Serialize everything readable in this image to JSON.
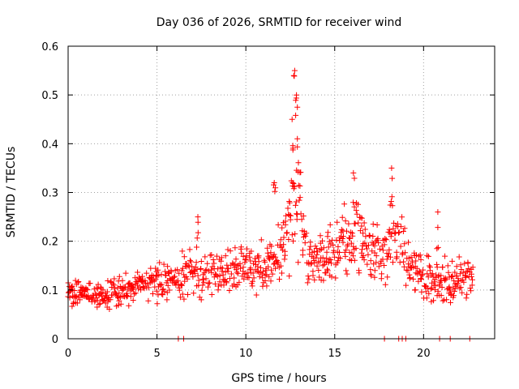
{
  "chart_data": {
    "type": "scatter",
    "title": "Day 036 of 2026, SRMTID for receiver wind",
    "xlabel": "GPS time / hours",
    "ylabel": "SRMTID / TECUs",
    "xlim": [
      0,
      24
    ],
    "ylim": [
      0,
      0.6
    ],
    "x_ticks": [
      0,
      5,
      10,
      15,
      20
    ],
    "y_ticks": [
      0,
      0.1,
      0.2,
      0.3,
      0.4,
      0.5,
      0.6
    ],
    "x_tick_labels": [
      "0",
      "5",
      "10",
      "15",
      "20"
    ],
    "y_tick_labels": [
      "0",
      "0.1",
      "0.2",
      "0.3",
      "0.4",
      "0.5",
      "0.6"
    ],
    "grid": true,
    "legend": "none",
    "marker": "plus",
    "color": "#ff0000",
    "sampling": "approximately every 2 minutes from 0 to 22.8 hours (~690 points)",
    "series_envelope": {
      "hours": [
        0,
        1,
        2,
        3,
        4,
        5,
        6,
        7,
        8,
        9,
        10,
        11,
        11.8,
        12.2,
        12.5,
        12.8,
        13,
        13.3,
        14,
        15,
        15.7,
        16.3,
        17,
        18,
        18.3,
        19,
        20,
        20.8,
        21.5,
        22,
        22.8
      ],
      "typical": [
        0.1,
        0.09,
        0.085,
        0.1,
        0.11,
        0.12,
        0.12,
        0.14,
        0.13,
        0.14,
        0.15,
        0.14,
        0.17,
        0.18,
        0.22,
        0.3,
        0.27,
        0.19,
        0.16,
        0.17,
        0.2,
        0.21,
        0.17,
        0.18,
        0.22,
        0.16,
        0.13,
        0.12,
        0.11,
        0.12,
        0.12
      ],
      "spread": [
        0.03,
        0.025,
        0.025,
        0.03,
        0.035,
        0.04,
        0.04,
        0.045,
        0.045,
        0.045,
        0.04,
        0.05,
        0.06,
        0.09,
        0.12,
        0.14,
        0.13,
        0.07,
        0.05,
        0.06,
        0.08,
        0.08,
        0.06,
        0.07,
        0.08,
        0.05,
        0.05,
        0.05,
        0.045,
        0.045,
        0.045
      ]
    },
    "peaks": [
      {
        "x": 12.75,
        "y": 0.55
      },
      {
        "x": 12.85,
        "y": 0.5
      },
      {
        "x": 12.6,
        "y": 0.45
      },
      {
        "x": 12.9,
        "y": 0.41
      },
      {
        "x": 16.05,
        "y": 0.34
      },
      {
        "x": 18.2,
        "y": 0.35
      },
      {
        "x": 11.6,
        "y": 0.32
      },
      {
        "x": 20.8,
        "y": 0.26
      },
      {
        "x": 7.3,
        "y": 0.25
      }
    ],
    "zero_points_x": [
      6.2,
      6.5,
      17.8,
      18.6,
      18.8,
      19.0,
      20.9,
      21.5,
      22.6
    ]
  }
}
